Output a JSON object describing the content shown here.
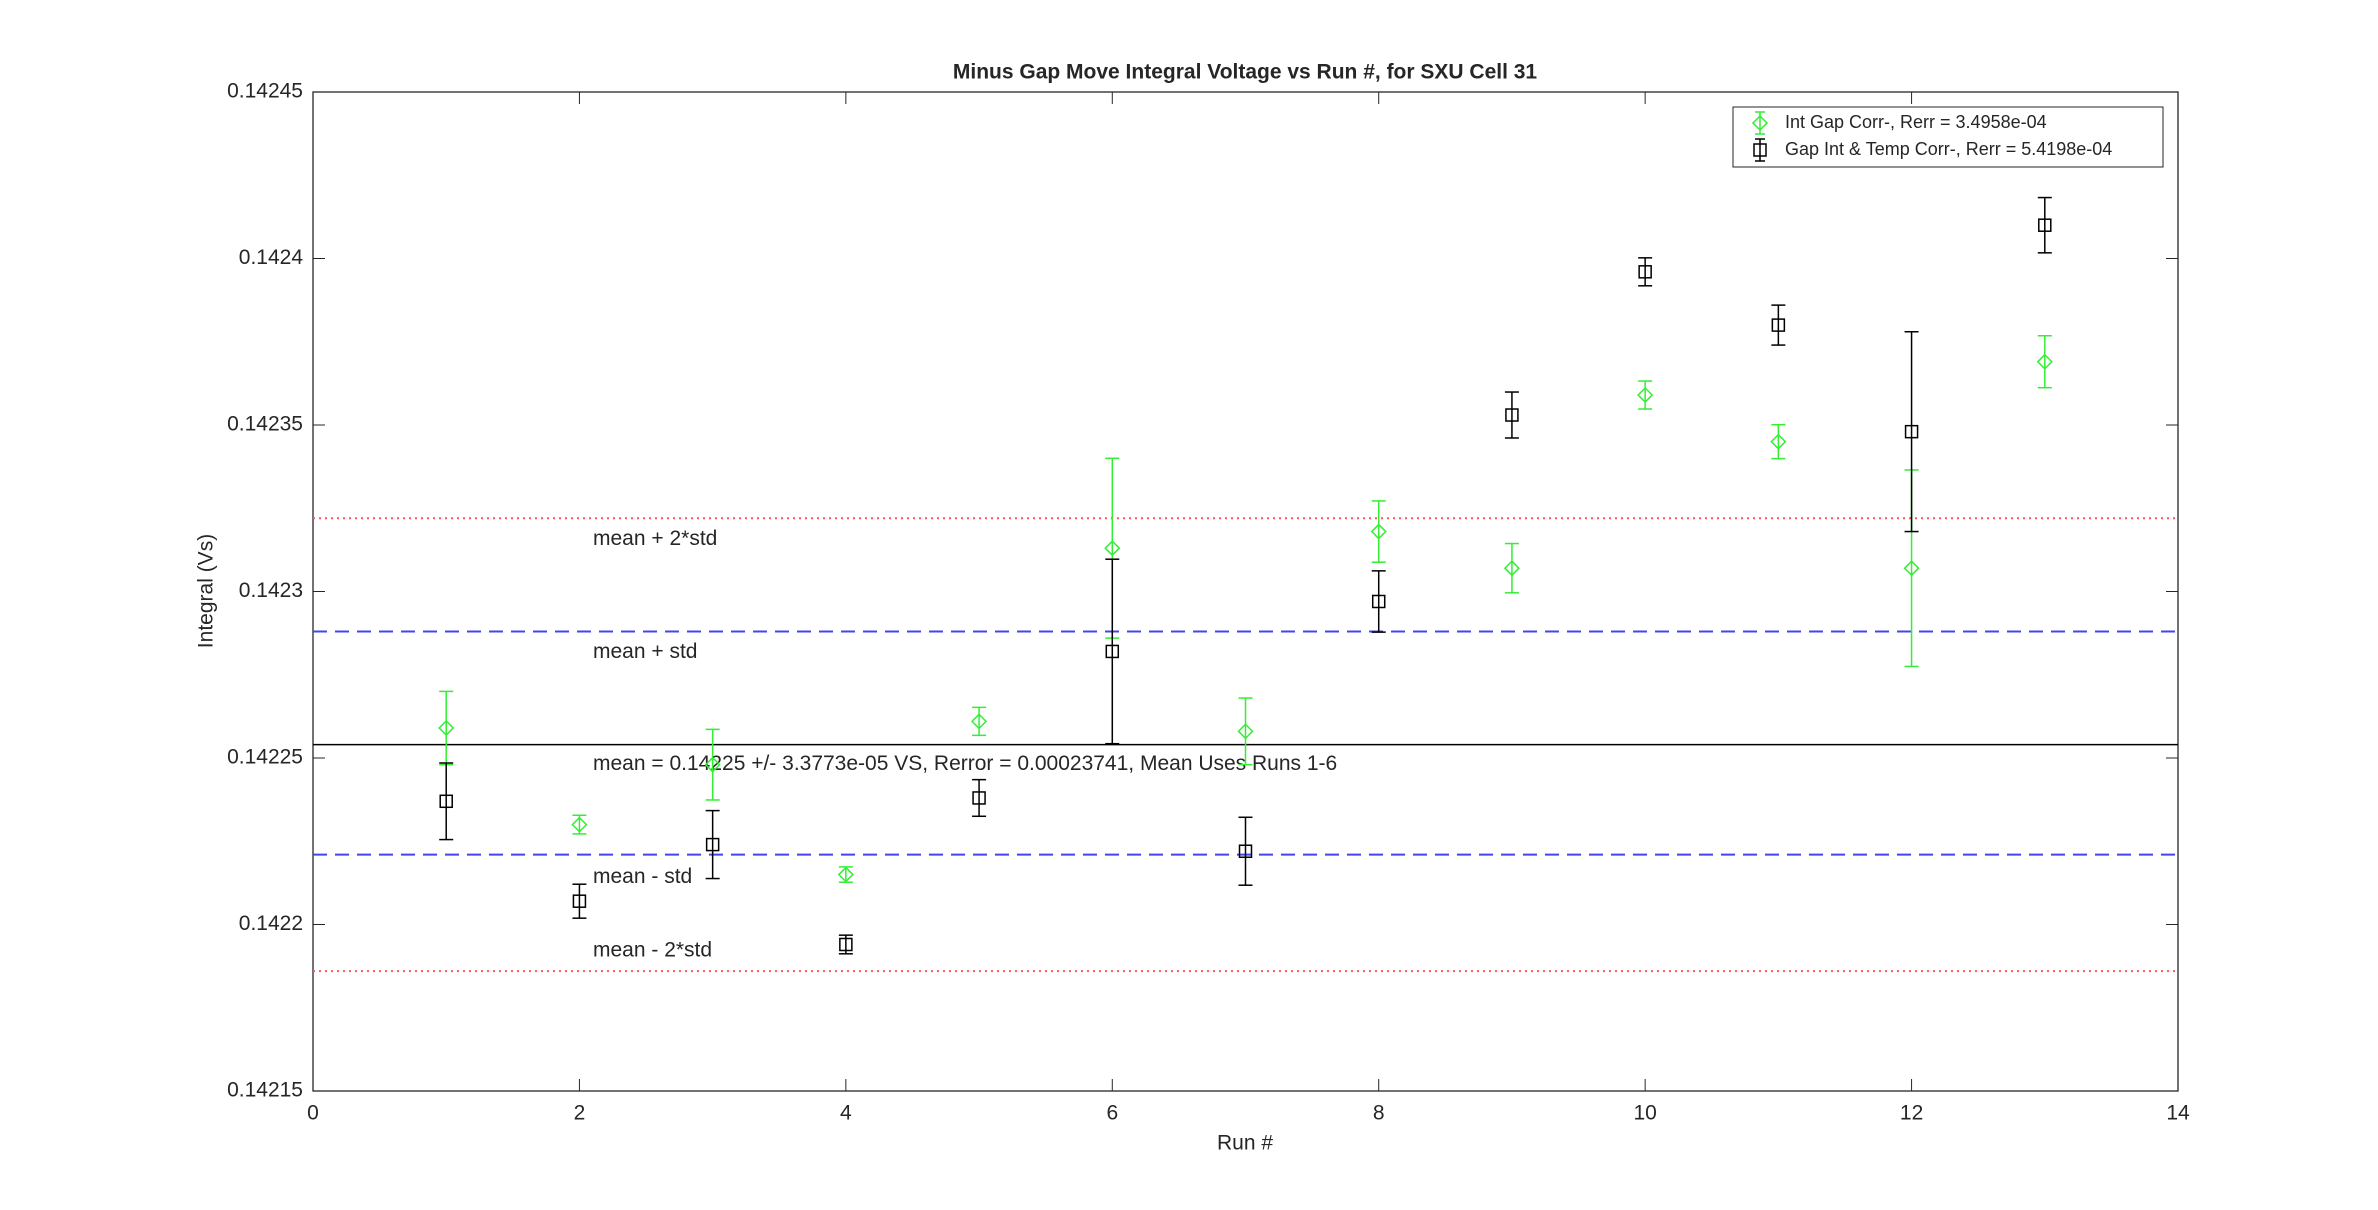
{
  "chart_data": {
    "type": "errorbar",
    "title": "Minus Gap Move Integral Voltage vs Run #, for SXU Cell 31",
    "x_label": "Run #",
    "y_label": "Integral (Vs)",
    "xlim": [
      0,
      14
    ],
    "xticks": [
      0,
      2,
      4,
      6,
      8,
      10,
      12,
      14
    ],
    "ylim": [
      0.14215,
      0.14245
    ],
    "yticks": [
      0.14215,
      0.1422,
      0.14225,
      0.1423,
      0.14235,
      0.1424,
      0.14245
    ],
    "legend_position": "upper right",
    "series": [
      {
        "name": "Int Gap Corr-, Rerr = 3.4958e-04",
        "color": "#33ee33",
        "marker": "diamond",
        "x": [
          1,
          2,
          3,
          4,
          5,
          6,
          7,
          8,
          9,
          10,
          11,
          12,
          13
        ],
        "values": [
          0.142259,
          0.14223,
          0.142248,
          0.142215,
          0.142261,
          0.142313,
          0.142258,
          0.142318,
          0.142307,
          0.142359,
          0.142345,
          0.142307,
          0.142369
        ],
        "errors": [
          1.1e-05,
          2.8e-06,
          1.06e-05,
          2.3e-06,
          4.2e-06,
          2.7e-05,
          1e-05,
          9.2e-06,
          7.4e-06,
          4.2e-06,
          5.1e-06,
          2.95e-05,
          7.8e-06
        ]
      },
      {
        "name": "Gap Int & Temp Corr-, Rerr = 5.4198e-04",
        "color": "#000000",
        "marker": "square",
        "x": [
          1,
          2,
          3,
          4,
          5,
          6,
          7,
          8,
          9,
          10,
          11,
          12,
          13
        ],
        "values": [
          0.142237,
          0.142207,
          0.142224,
          0.142194,
          0.142238,
          0.142282,
          0.142222,
          0.142297,
          0.142353,
          0.142396,
          0.14238,
          0.142348,
          0.14241
        ],
        "errors": [
          1.15e-05,
          5.1e-06,
          1.02e-05,
          2.8e-06,
          5.5e-06,
          2.77e-05,
          1.02e-05,
          9.2e-06,
          6.9e-06,
          4.2e-06,
          6e-06,
          3e-05,
          8.3e-06
        ]
      }
    ],
    "reference_lines": [
      {
        "value": 0.142322,
        "label": "mean + 2*std",
        "color": "#ff5555",
        "style": "dotted"
      },
      {
        "value": 0.142288,
        "label": "mean + std",
        "color": "#4444ee",
        "style": "dashed"
      },
      {
        "value": 0.142254,
        "label": "mean = 0.14225 +/- 3.3773e-05 VS, Rerror = 0.00023741, Mean Uses Runs 1-6",
        "color": "#000000",
        "style": "solid"
      },
      {
        "value": 0.142221,
        "label": "mean - std",
        "color": "#4444ee",
        "style": "dashed"
      },
      {
        "value": 0.142186,
        "label": "mean - 2*std",
        "color": "#ff5555",
        "style": "dotted"
      }
    ]
  }
}
